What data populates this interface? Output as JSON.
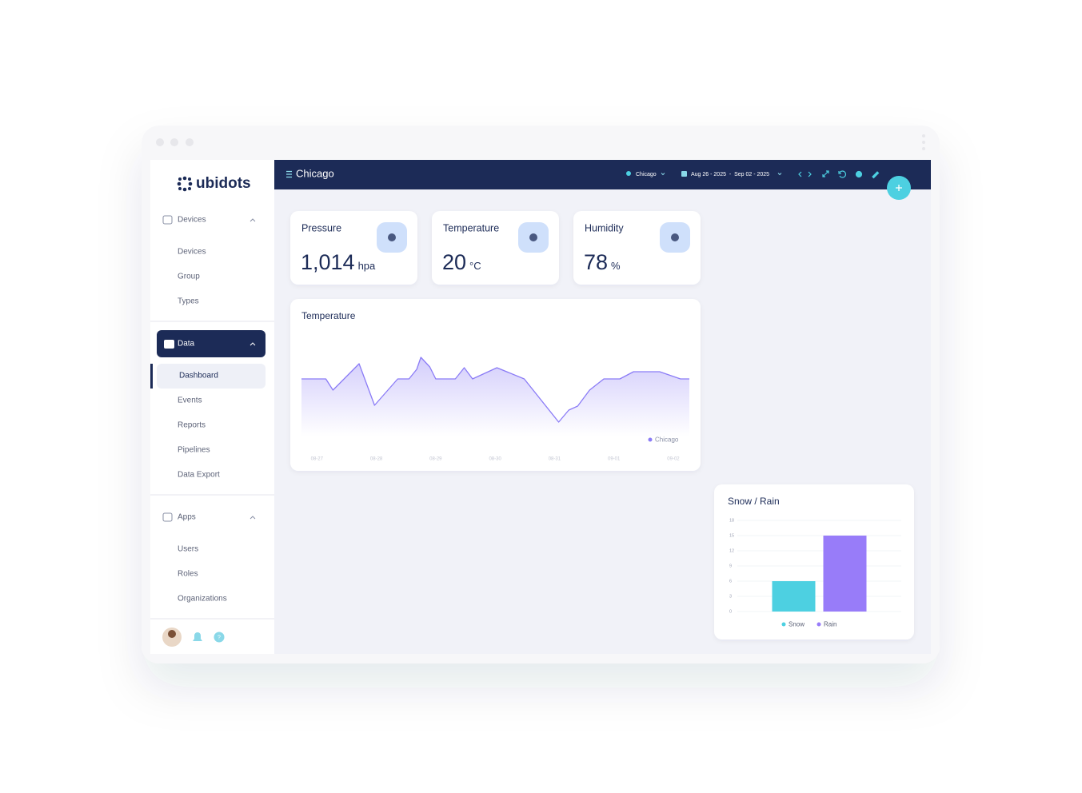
{
  "sidebar": {
    "logo": "ubidots",
    "groups": [
      {
        "title": "Devices",
        "items": [
          "Devices",
          "Group",
          "Types"
        ]
      },
      {
        "title": "Data",
        "selected": true,
        "active_item": 0,
        "items": [
          "Dashboard",
          "Events",
          "Reports",
          "Pipelines",
          "Data Export"
        ]
      },
      {
        "title": "Apps",
        "items": [
          "Users",
          "Roles",
          "Organizations"
        ]
      }
    ]
  },
  "header": {
    "title": "Chicago",
    "location": "Chicago",
    "date_range": "Aug 26 - 2025  -  Sep 02 - 2025"
  },
  "cards": [
    {
      "title": "Pressure",
      "value": "1,014",
      "unit": "hpa"
    },
    {
      "title": "Temperature",
      "value": "20",
      "unit": "°C"
    },
    {
      "title": "Humidity",
      "value": "78",
      "unit": "%"
    }
  ],
  "chart_data": [
    {
      "type": "area",
      "title": "Temperature",
      "x": [
        -0.26,
        0.15,
        0.27,
        0.71,
        0.97,
        1.36,
        1.55,
        1.68,
        1.75,
        1.9,
        2.0,
        2.33,
        2.48,
        2.62,
        3.03,
        3.49,
        4.07,
        4.24,
        4.39,
        4.59,
        4.83,
        5.1,
        5.33,
        5.77,
        6.12,
        6.27
      ],
      "series": [
        {
          "name": "Chicago",
          "color": "#8b7cf6",
          "values": [
            20,
            20,
            18.6,
            21.9,
            16.7,
            20,
            20,
            21.2,
            22.7,
            21.5,
            20,
            20,
            21.4,
            20,
            21.4,
            20,
            14.6,
            16.1,
            16.6,
            18.6,
            20,
            20,
            20.9,
            20.9,
            20,
            20
          ]
        }
      ],
      "xlim": [
        -0.26,
        6.27
      ],
      "xticks": [
        {
          "value": 0,
          "label": "08-27"
        },
        {
          "value": 1,
          "label": "08-28"
        },
        {
          "value": 2,
          "label": "08-29"
        },
        {
          "value": 3,
          "label": "08-30"
        },
        {
          "value": 4,
          "label": "08-31"
        },
        {
          "value": 5,
          "label": "09-01"
        },
        {
          "value": 6,
          "label": "09-02"
        }
      ],
      "ylim": [
        12,
        24
      ]
    },
    {
      "type": "bar",
      "title": "Snow / Rain",
      "series": [
        {
          "name": "Snow",
          "color": "#4dd0e1",
          "values": [
            6
          ]
        },
        {
          "name": "Rain",
          "color": "#987cf9",
          "values": [
            15
          ]
        }
      ],
      "ylim": [
        0,
        18
      ],
      "yticks": [
        0,
        3,
        6,
        9,
        12,
        15,
        18
      ],
      "grid": true
    }
  ]
}
